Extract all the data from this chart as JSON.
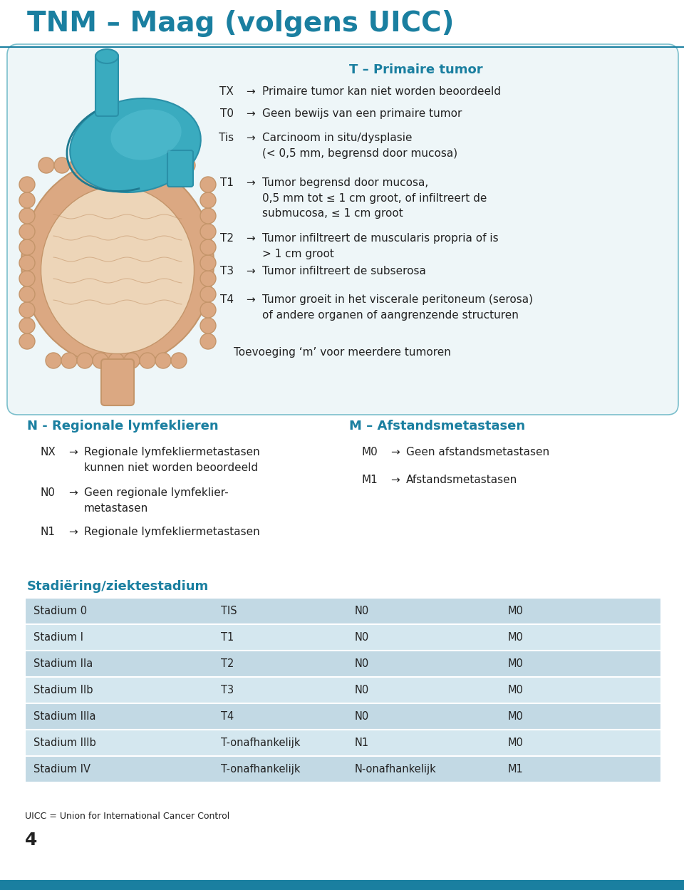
{
  "title": "TNM – Maag (volgens UICC)",
  "title_color": "#1a7fa0",
  "bg_color": "#ffffff",
  "section_box_bg": "#eef6f8",
  "section_box_border": "#7bbfcc",
  "teal_color": "#1a7fa0",
  "dark_text": "#222222",
  "arrow": "→",
  "t_section_title": "T – Primaire tumor",
  "t_items": [
    [
      "TX",
      "Primaire tumor kan niet worden beoordeeld"
    ],
    [
      "T0",
      "Geen bewijs van een primaire tumor"
    ],
    [
      "Tis",
      "Carcinoom in situ/dysplasie\n(< 0,5 mm, begrensd door mucosa)"
    ],
    [
      "T1",
      "Tumor begrensd door mucosa,\n0,5 mm tot ≤ 1 cm groot, of infiltreert de\nsubmucosa, ≤ 1 cm groot"
    ],
    [
      "T2",
      "Tumor infiltreert de muscularis propria of is\n> 1 cm groot"
    ],
    [
      "T3",
      "Tumor infiltreert de subserosa"
    ],
    [
      "T4",
      "Tumor groeit in het viscerale peritoneum (serosa)\nof andere organen of aangrenzende structuren"
    ]
  ],
  "t_footer": "Toevoeging ‘m’ voor meerdere tumoren",
  "n_section_title": "N - Regionale lymfeklieren",
  "n_items": [
    [
      "NX",
      "Regionale lymfekliermetastasen\nkunnen niet worden beoordeeld"
    ],
    [
      "N0",
      "Geen regionale lymfeklier-\nmetastasen"
    ],
    [
      "N1",
      "Regionale lymfekliermetastasen"
    ]
  ],
  "m_section_title": "M – Afstandsmetastasen",
  "m_items": [
    [
      "M0",
      "Geen afstandsmetastasen"
    ],
    [
      "M1",
      "Afstandsmetastasen"
    ]
  ],
  "staging_title": "Stadiëring/ziektestadium",
  "table_rows": [
    [
      "Stadium 0",
      "TIS",
      "N0",
      "M0"
    ],
    [
      "Stadium I",
      "T1",
      "N0",
      "M0"
    ],
    [
      "Stadium IIa",
      "T2",
      "N0",
      "M0"
    ],
    [
      "Stadium IIb",
      "T3",
      "N0",
      "M0"
    ],
    [
      "Stadium IIIa",
      "T4",
      "N0",
      "M0"
    ],
    [
      "Stadium IIIb",
      "T-onafhankelijk",
      "N1",
      "M0"
    ],
    [
      "Stadium IV",
      "T-onafhankelijk",
      "N-onafhankelijk",
      "M1"
    ]
  ],
  "table_bg_even": "#c2d9e4",
  "table_bg_odd": "#d4e7ef",
  "footnote": "UICC = Union for International Cancer Control",
  "page_number": "4",
  "bottom_bar_color": "#1a7fa0"
}
